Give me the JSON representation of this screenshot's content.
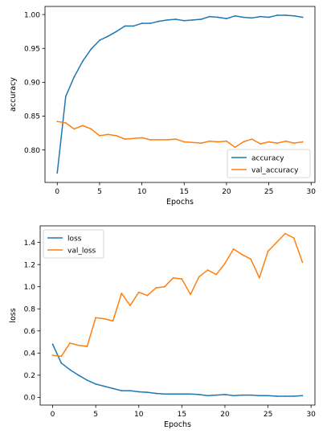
{
  "chart_data": [
    {
      "type": "line",
      "xlabel": "Epochs",
      "ylabel": "accuracy",
      "xlim": [
        -1.45,
        30.45
      ],
      "ylim": [
        0.752,
        1.012
      ],
      "xticks": [
        0,
        5,
        10,
        15,
        20,
        25,
        30
      ],
      "yticks": [
        0.8,
        0.85,
        0.9,
        0.95,
        1.0
      ],
      "ytick_labels": [
        "0.80",
        "0.85",
        "0.90",
        "0.95",
        "1.00"
      ],
      "legend_position": "bottom-right",
      "grid": false,
      "x": [
        0,
        1,
        2,
        3,
        4,
        5,
        6,
        7,
        8,
        9,
        10,
        11,
        12,
        13,
        14,
        15,
        16,
        17,
        18,
        19,
        20,
        21,
        22,
        23,
        24,
        25,
        26,
        27,
        28,
        29
      ],
      "series": [
        {
          "name": "accuracy",
          "color": "#1f77b4",
          "values": [
            0.766,
            0.879,
            0.908,
            0.931,
            0.949,
            0.962,
            0.968,
            0.975,
            0.983,
            0.983,
            0.987,
            0.987,
            0.99,
            0.992,
            0.993,
            0.991,
            0.992,
            0.993,
            0.997,
            0.996,
            0.994,
            0.998,
            0.996,
            0.995,
            0.997,
            0.996,
            0.999,
            0.999,
            0.998,
            0.996
          ]
        },
        {
          "name": "val_accuracy",
          "color": "#ff7f0e",
          "values": [
            0.842,
            0.84,
            0.831,
            0.836,
            0.831,
            0.821,
            0.823,
            0.821,
            0.816,
            0.817,
            0.818,
            0.815,
            0.815,
            0.815,
            0.816,
            0.812,
            0.811,
            0.81,
            0.813,
            0.812,
            0.813,
            0.804,
            0.812,
            0.816,
            0.809,
            0.812,
            0.81,
            0.813,
            0.81,
            0.812
          ]
        }
      ]
    },
    {
      "type": "line",
      "xlabel": "Epochs",
      "ylabel": "loss",
      "xlim": [
        -1.45,
        30.45
      ],
      "ylim": [
        -0.07,
        1.55
      ],
      "xticks": [
        0,
        5,
        10,
        15,
        20,
        25,
        30
      ],
      "yticks": [
        0.0,
        0.2,
        0.4,
        0.6,
        0.8,
        1.0,
        1.2,
        1.4
      ],
      "ytick_labels": [
        "0.0",
        "0.2",
        "0.4",
        "0.6",
        "0.8",
        "1.0",
        "1.2",
        "1.4"
      ],
      "legend_position": "top-left",
      "grid": false,
      "x": [
        0,
        1,
        2,
        3,
        4,
        5,
        6,
        7,
        8,
        9,
        10,
        11,
        12,
        13,
        14,
        15,
        16,
        17,
        18,
        19,
        20,
        21,
        22,
        23,
        24,
        25,
        26,
        27,
        28,
        29
      ],
      "series": [
        {
          "name": "loss",
          "color": "#1f77b4",
          "values": [
            0.48,
            0.31,
            0.25,
            0.2,
            0.155,
            0.12,
            0.1,
            0.08,
            0.06,
            0.06,
            0.05,
            0.045,
            0.035,
            0.03,
            0.03,
            0.03,
            0.03,
            0.025,
            0.015,
            0.02,
            0.025,
            0.015,
            0.02,
            0.02,
            0.015,
            0.015,
            0.01,
            0.01,
            0.01,
            0.015
          ]
        },
        {
          "name": "val_loss",
          "color": "#ff7f0e",
          "values": [
            0.38,
            0.37,
            0.49,
            0.47,
            0.46,
            0.72,
            0.71,
            0.69,
            0.94,
            0.83,
            0.95,
            0.92,
            0.99,
            1.0,
            1.08,
            1.07,
            0.93,
            1.09,
            1.15,
            1.11,
            1.21,
            1.34,
            1.29,
            1.25,
            1.08,
            1.32,
            1.4,
            1.48,
            1.44,
            1.22
          ]
        }
      ]
    }
  ]
}
